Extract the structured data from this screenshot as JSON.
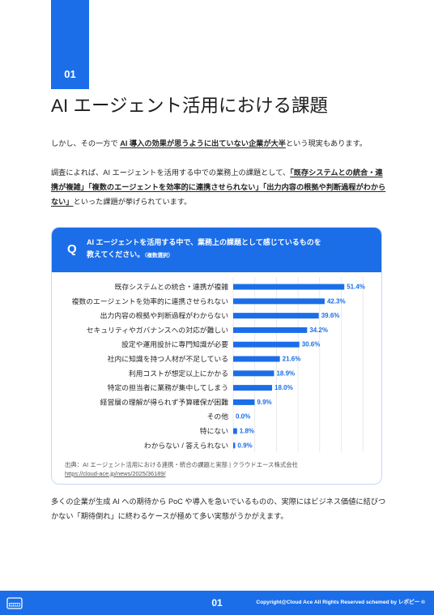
{
  "section": {
    "number": "01"
  },
  "title": "AI エージェント活用における課題",
  "intro": {
    "p1": [
      "しかし、その一方で ",
      "AI 導入の効果が思うように出ていない企業が大半",
      "という現実もあります。"
    ],
    "p2": [
      [
        "調査によれば、AI エージェントを活用する中での業務上の課題として、",
        "「既存システムとの統合・連"
      ],
      [
        "携が複雑」",
        "「複数のエージェントを効率的に連携させられない」",
        "「出力内容の根拠や判断過程がわから"
      ],
      [
        "ない」",
        "といった課題が挙げられています。"
      ]
    ]
  },
  "question": {
    "mark": "Q",
    "line1": "AI エージェントを活用する中で、業務上の課題として感じているものを",
    "line2": "教えてください。",
    "note": "（複数選択）"
  },
  "chart_data": {
    "type": "bar",
    "orientation": "horizontal",
    "categories": [
      "既存システムとの統合・連携が複雑",
      "複数のエージェントを効率的に連携させられない",
      "出力内容の根拠や判断過程がわからない",
      "セキュリティやガバナンスへの対応が難しい",
      "設定や運用設計に専門知識が必要",
      "社内に知識を持つ人材が不足している",
      "利用コストが想定以上にかかる",
      "特定の担当者に業務が集中してしまう",
      "経営層の理解が得られず予算確保が困難",
      "その他",
      "特にない",
      "わからない / 答えられない"
    ],
    "values": [
      51.4,
      42.3,
      39.6,
      34.2,
      30.6,
      21.6,
      18.9,
      18.0,
      9.9,
      0.0,
      1.8,
      0.9
    ],
    "unit": "%",
    "xlim": [
      0,
      60
    ],
    "grid": true
  },
  "source": {
    "label": "出典：AI エージェント活用における連携・統合の課題と実態 | クラウドエース株式会社",
    "url": "https://cloud-ace.jp/news/2025/36189/"
  },
  "outro": {
    "lines": [
      "多くの企業が生成 AI への期待から PoC や導入を急いでいるものの、実際にはビジネス価値に結びつ",
      "かない「期待倒れ」に終わるケースが極めて多い実態がうかがえます。"
    ]
  },
  "footer": {
    "icon": "keyboard-icon",
    "page": "01",
    "copyright": "Copyright@Cloud Ace All Rights Reserved schemed by レポピー ®"
  },
  "colors": {
    "accent": "#1b6ee8",
    "text": "#262626"
  }
}
